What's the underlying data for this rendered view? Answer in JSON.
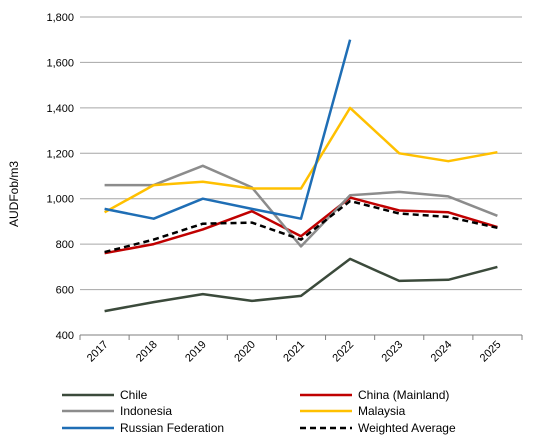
{
  "chart_data": {
    "type": "line",
    "ylabel": "AUDFob/m3",
    "xlabel": "",
    "title": "",
    "ylim": [
      400,
      1800
    ],
    "yticks": [
      400,
      600,
      800,
      1000,
      1200,
      1400,
      1600,
      1800
    ],
    "ytick_labels": [
      "400",
      "600",
      "800",
      "1,000",
      "1,200",
      "1,400",
      "1,600",
      "1,800"
    ],
    "categories": [
      "2017",
      "2018",
      "2019",
      "2020",
      "2021",
      "2022",
      "2023",
      "2024",
      "2025"
    ],
    "grid": "horizontal",
    "legend_position": "bottom",
    "series": [
      {
        "name": "Chile",
        "color": "#3b4a3b",
        "dash": "solid",
        "values": [
          505,
          545,
          580,
          550,
          572,
          735,
          638,
          643,
          700
        ]
      },
      {
        "name": "China (Mainland)",
        "color": "#c00000",
        "dash": "solid",
        "values": [
          760,
          800,
          865,
          945,
          835,
          1005,
          948,
          940,
          875
        ]
      },
      {
        "name": "Indonesia",
        "color": "#8c8c8c",
        "dash": "solid",
        "values": [
          1060,
          1060,
          1145,
          1050,
          790,
          1015,
          1030,
          1010,
          925
        ]
      },
      {
        "name": "Malaysia",
        "color": "#ffc000",
        "dash": "solid",
        "values": [
          940,
          1060,
          1075,
          1045,
          1045,
          1400,
          1200,
          1165,
          1205
        ]
      },
      {
        "name": "Russian Federation",
        "color": "#1f6eb5",
        "dash": "solid",
        "values": [
          955,
          912,
          1000,
          955,
          912,
          1700,
          null,
          null,
          null
        ]
      },
      {
        "name": "Weighted Average",
        "color": "#000000",
        "dash": "dashed",
        "values": [
          765,
          820,
          890,
          895,
          820,
          990,
          935,
          920,
          872
        ]
      }
    ]
  }
}
